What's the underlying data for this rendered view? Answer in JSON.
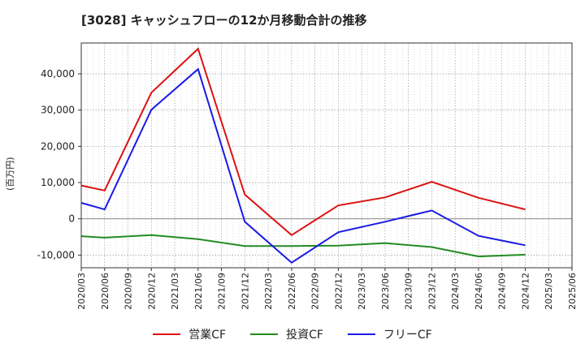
{
  "chart_data": {
    "type": "line",
    "title": "[3028]  キャッシュフローの12か月移動合計の推移",
    "ylabel": "(百万円)",
    "xlabel": "",
    "ylim": [
      -13500,
      48500
    ],
    "yticks": [
      -10000,
      0,
      10000,
      20000,
      30000,
      40000
    ],
    "ytick_labels": [
      "-10,000",
      "0",
      "10,000",
      "20,000",
      "30,000",
      "40,000"
    ],
    "categories": [
      "2020/03",
      "2020/06",
      "2020/09",
      "2020/12",
      "2021/03",
      "2021/06",
      "2021/09",
      "2021/12",
      "2022/03",
      "2022/06",
      "2022/09",
      "2022/12",
      "2023/03",
      "2023/06",
      "2023/09",
      "2023/12",
      "2024/03",
      "2024/06",
      "2024/09",
      "2024/12",
      "2025/03",
      "2025/06"
    ],
    "grid": true,
    "series": [
      {
        "name": "営業CF",
        "color": "#dd1111",
        "values": [
          9200,
          7800,
          null,
          34800,
          null,
          46900,
          null,
          6700,
          null,
          -4500,
          null,
          3700,
          null,
          5900,
          null,
          10200,
          null,
          5800,
          null,
          2600,
          null,
          null
        ]
      },
      {
        "name": "投資CF",
        "color": "#228b22",
        "values": [
          -4800,
          -5200,
          null,
          -4500,
          null,
          -5600,
          null,
          -7500,
          null,
          -7500,
          null,
          -7400,
          null,
          -6700,
          null,
          -7800,
          null,
          -10400,
          null,
          -9900,
          null,
          null
        ]
      },
      {
        "name": "フリーCF",
        "color": "#1a1ae6",
        "values": [
          4400,
          2600,
          null,
          30100,
          null,
          41300,
          null,
          -800,
          null,
          -12100,
          null,
          -3700,
          null,
          -800,
          null,
          2300,
          null,
          -4700,
          null,
          -7300,
          null,
          null
        ]
      }
    ]
  }
}
